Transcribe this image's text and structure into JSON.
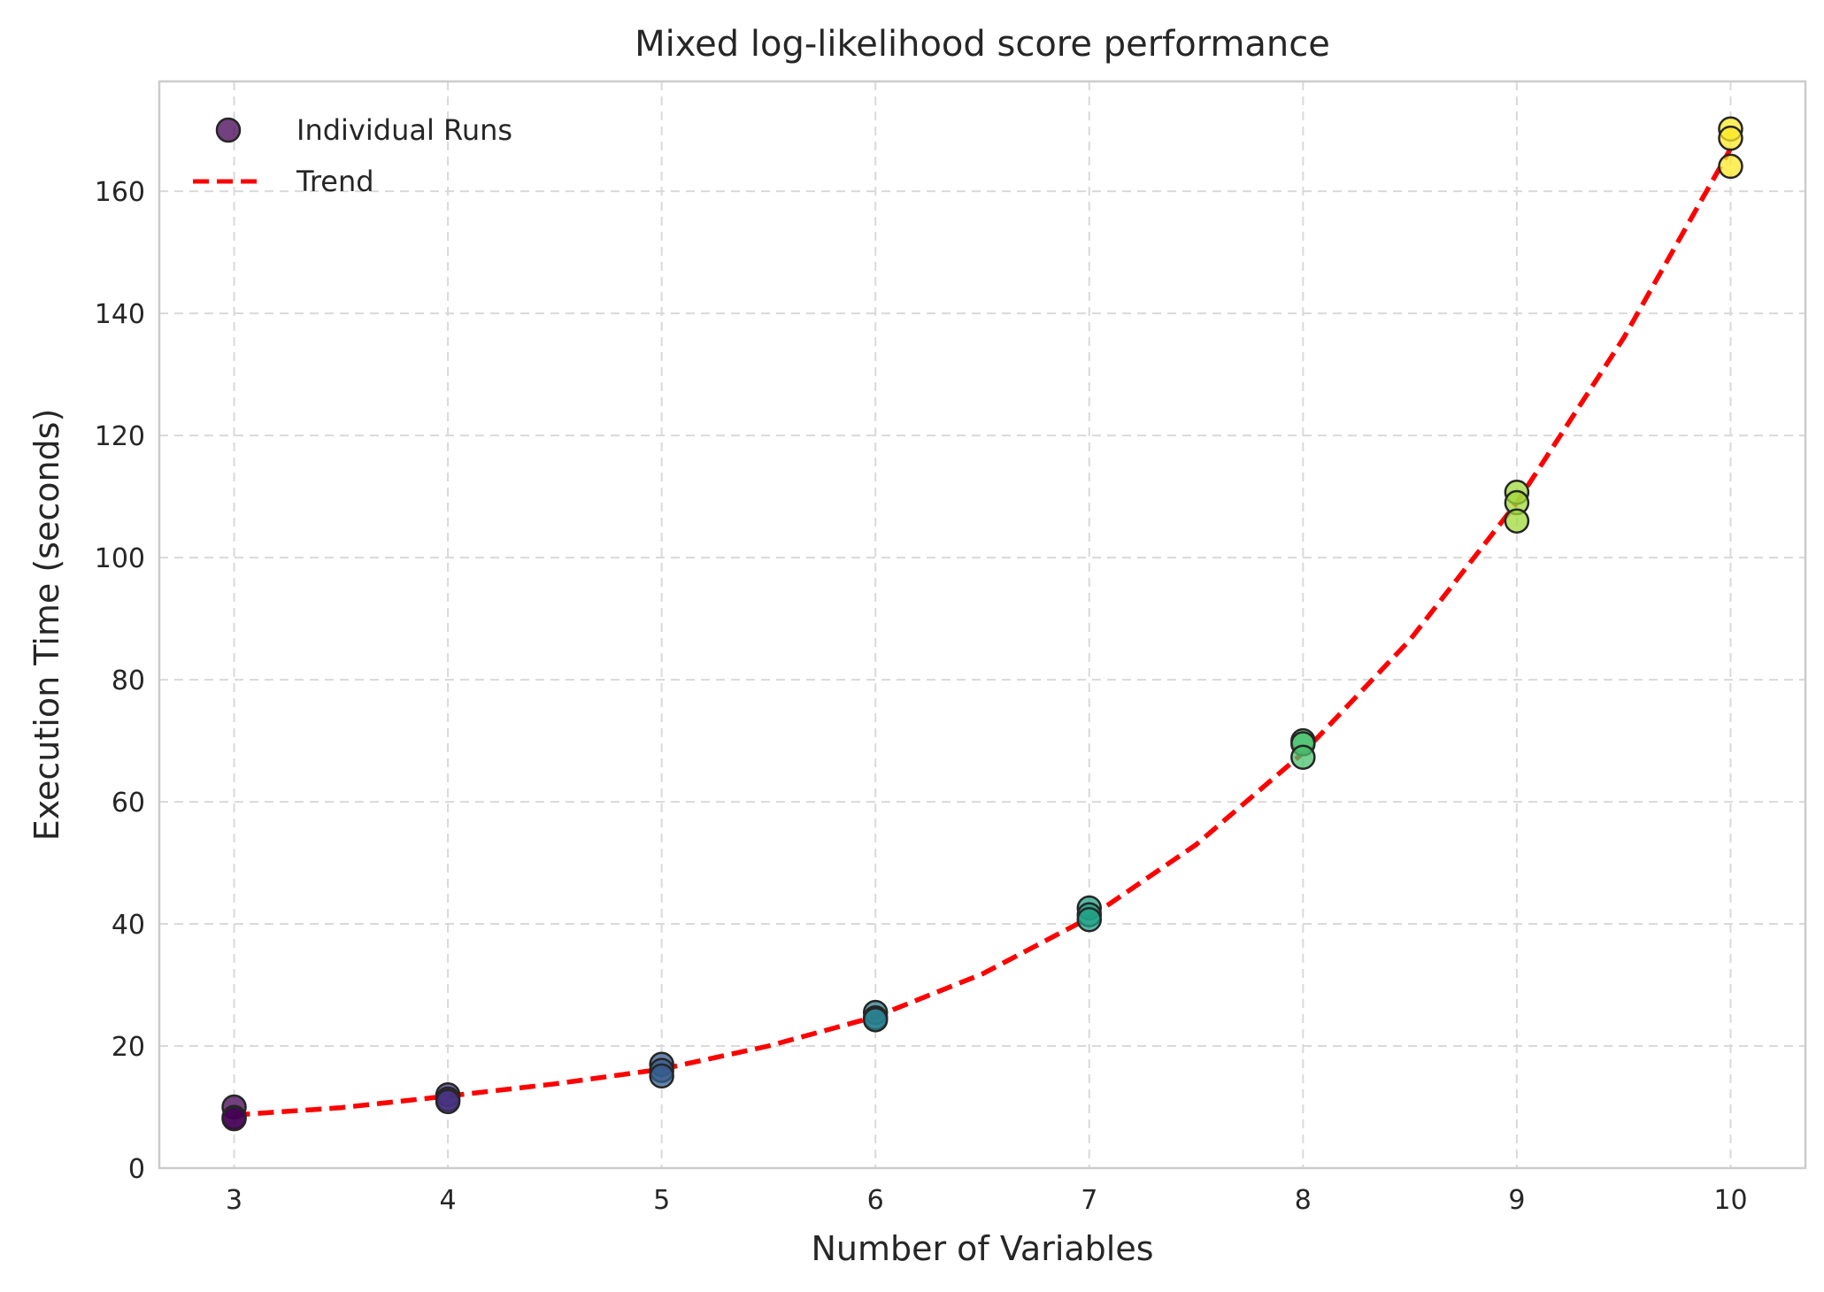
{
  "chart_data": {
    "type": "scatter",
    "title": "Mixed log-likelihood score performance",
    "xlabel": "Number of Variables",
    "ylabel": "Execution Time (seconds)",
    "xlim": [
      2.65,
      10.35
    ],
    "ylim": [
      0,
      178
    ],
    "xticks": [
      "3",
      "4",
      "5",
      "6",
      "7",
      "8",
      "9",
      "10"
    ],
    "yticks": [
      "0",
      "20",
      "40",
      "60",
      "80",
      "100",
      "120",
      "140",
      "160"
    ],
    "grid": true,
    "legend_position": "top-left",
    "series": [
      {
        "name": "Individual Runs",
        "kind": "scatter",
        "colormap": "viridis",
        "points": [
          {
            "x": 3,
            "y": 10.0,
            "color": "#440154"
          },
          {
            "x": 3,
            "y": 8.3,
            "color": "#440154"
          },
          {
            "x": 3,
            "y": 8.1,
            "color": "#440154"
          },
          {
            "x": 4,
            "y": 12.0,
            "color": "#46327e"
          },
          {
            "x": 4,
            "y": 11.3,
            "color": "#46327e"
          },
          {
            "x": 4,
            "y": 10.9,
            "color": "#46327e"
          },
          {
            "x": 5,
            "y": 17.0,
            "color": "#365c8d"
          },
          {
            "x": 5,
            "y": 16.0,
            "color": "#365c8d"
          },
          {
            "x": 5,
            "y": 15.1,
            "color": "#365c8d"
          },
          {
            "x": 6,
            "y": 25.5,
            "color": "#277f8e"
          },
          {
            "x": 6,
            "y": 24.6,
            "color": "#277f8e"
          },
          {
            "x": 6,
            "y": 24.3,
            "color": "#277f8e"
          },
          {
            "x": 7,
            "y": 42.6,
            "color": "#1fa187"
          },
          {
            "x": 7,
            "y": 41.5,
            "color": "#1fa187"
          },
          {
            "x": 7,
            "y": 40.7,
            "color": "#1fa187"
          },
          {
            "x": 8,
            "y": 70.0,
            "color": "#4ac16d"
          },
          {
            "x": 8,
            "y": 69.5,
            "color": "#4ac16d"
          },
          {
            "x": 8,
            "y": 67.3,
            "color": "#4ac16d"
          },
          {
            "x": 9,
            "y": 110.7,
            "color": "#a0da39"
          },
          {
            "x": 9,
            "y": 109.0,
            "color": "#a0da39"
          },
          {
            "x": 9,
            "y": 106.0,
            "color": "#a0da39"
          },
          {
            "x": 10,
            "y": 170.2,
            "color": "#fde725"
          },
          {
            "x": 10,
            "y": 168.7,
            "color": "#fde725"
          },
          {
            "x": 10,
            "y": 164.1,
            "color": "#fde725"
          }
        ]
      },
      {
        "name": "Trend",
        "kind": "line",
        "style": "dashed",
        "color": "#ff0000",
        "x": [
          3,
          3.5,
          4,
          4.5,
          5,
          5.5,
          6,
          6.5,
          7,
          7.5,
          8,
          8.5,
          9,
          9.5,
          10
        ],
        "y": [
          8.7,
          9.9,
          11.8,
          13.8,
          16.2,
          20.0,
          24.8,
          31.8,
          41.0,
          53.0,
          68.0,
          86.5,
          109.0,
          136.0,
          167.0
        ]
      }
    ],
    "legend_marker_color": "#440154"
  }
}
